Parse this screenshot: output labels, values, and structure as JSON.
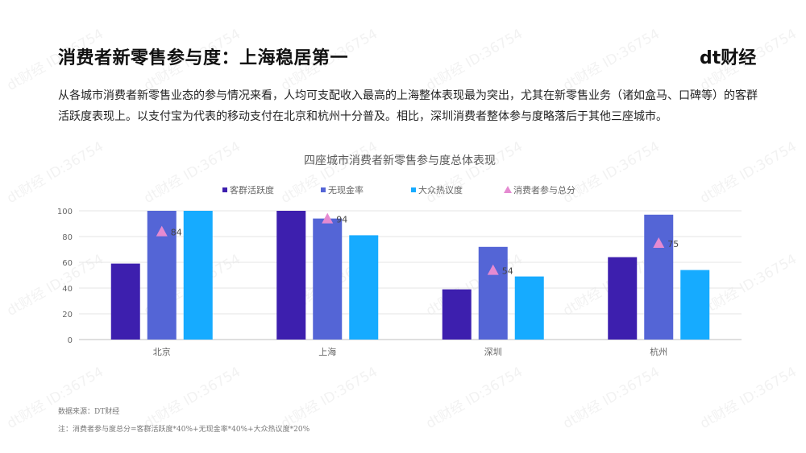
{
  "header": {
    "title": "消费者新零售参与度：上海稳居第一",
    "logo": "dt财经"
  },
  "description": "从各城市消费者新零售业态的参与情况来看，人均可支配收入最高的上海整体表现最为突出，尤其在新零售业务（诸如盒马、口碑等）的客群活跃度表现上。以支付宝为代表的移动支付在北京和杭州十分普及。相比，深圳消费者整体参与度略落后于其他三座城市。",
  "footer": {
    "source": "数据来源：DT财经",
    "note": "注：消费者参与度总分=客群活跃度*40%+无现金率*40%+大众热议度*20%"
  },
  "watermark": "dt财经 ID:36754",
  "chart_data": {
    "type": "bar",
    "title": "四座城市消费者新零售参与度总体表现",
    "xlabel": "",
    "ylabel": "",
    "ylim": [
      0,
      100
    ],
    "yticks": [
      0,
      20,
      40,
      60,
      80,
      100
    ],
    "grid": true,
    "legend_position": "top",
    "categories": [
      "北京",
      "上海",
      "深圳",
      "杭州"
    ],
    "series": [
      {
        "name": "客群活跃度",
        "kind": "bar",
        "color": "#3d1fae",
        "values": [
          59,
          100,
          39,
          64
        ]
      },
      {
        "name": "无现金率",
        "kind": "bar",
        "color": "#5465d6",
        "values": [
          100,
          94,
          72,
          97
        ]
      },
      {
        "name": "大众热议度",
        "kind": "bar",
        "color": "#16abff",
        "values": [
          100,
          81,
          49,
          54
        ]
      },
      {
        "name": "消费者参与总分",
        "kind": "marker",
        "color": "#e58ad1",
        "values": [
          84,
          94,
          54,
          75
        ],
        "labels": [
          "84",
          "94",
          "54",
          "75"
        ]
      }
    ]
  }
}
